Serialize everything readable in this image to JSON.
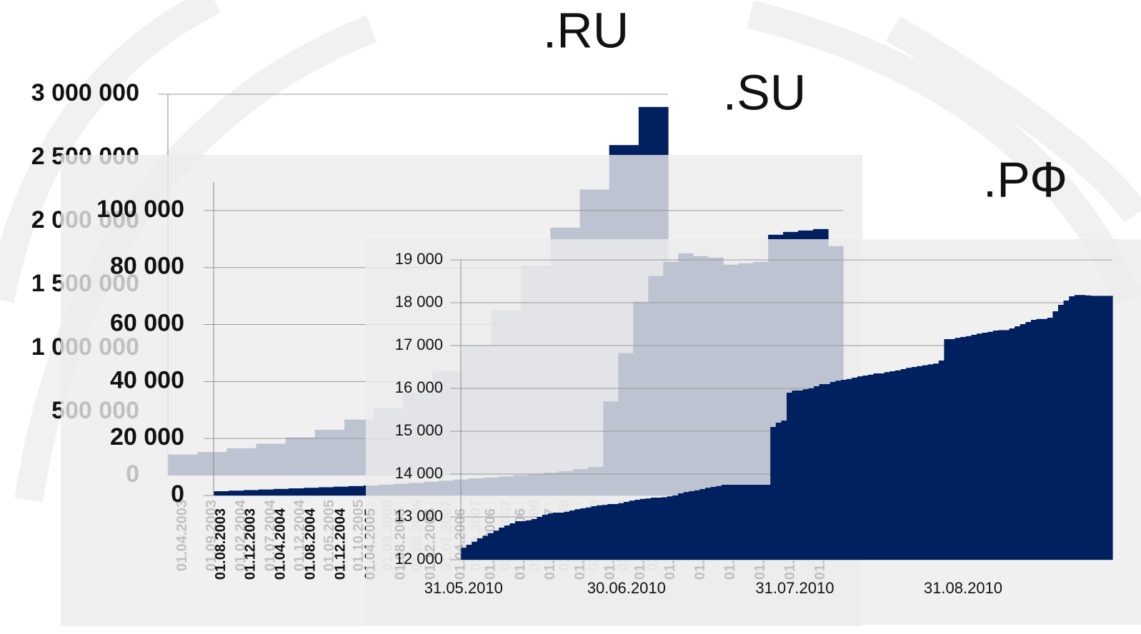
{
  "chart_data": [
    {
      "type": "bar",
      "title": ".RU",
      "categories": [
        "01.04.2003",
        "01.09.2003",
        "01.02.2004",
        "01.07.2004",
        "01.12.2004",
        "01.05.2005",
        "01.10.2005",
        "01.03.2006",
        "01.08.2006",
        "01.01.2007",
        "01.06.2007",
        "01.11.2007",
        "01.04.2008",
        "01.09.2008",
        "01.02.2009",
        "01.07.2009",
        "01.12.2009"
      ],
      "values": [
        165000,
        185000,
        215000,
        250000,
        300000,
        360000,
        440000,
        530000,
        650000,
        820000,
        1020000,
        1300000,
        1650000,
        1950000,
        2250000,
        2600000,
        2900000
      ],
      "color": "#002060",
      "ylim": [
        0,
        3000000
      ],
      "yticks": [
        0,
        {
          "value": 500000,
          "label": "500 000"
        },
        {
          "value": 1000000,
          "label": "1 000 000"
        },
        {
          "value": 1500000,
          "label": "1 500 000"
        },
        {
          "value": 2000000,
          "label": "2 000 000"
        },
        {
          "value": 2500000,
          "label": "2 500 000"
        },
        {
          "value": 3000000,
          "label": "3 000 000"
        }
      ],
      "grid": false
    },
    {
      "type": "bar",
      "title": ".SU",
      "categories": [
        "01.08.2003",
        null,
        "01.12.2003",
        null,
        "01.04.2004",
        null,
        "01.08.2004",
        null,
        "01.12.2004",
        null,
        "01.04.2005",
        null,
        "01.08.2005",
        null,
        "01.12.2005",
        null,
        "01.04.2006",
        null,
        "01.08.2006",
        null,
        "01.12.2006",
        null,
        "01.04.2007",
        null,
        "01.08.2007",
        null,
        "01.12.2007",
        null,
        "01.04.2008",
        null,
        "01.08.2008",
        null,
        "01.12.2008",
        null,
        "01.04.2009",
        null,
        "01.08.2009",
        null,
        "01.12.2009",
        null,
        "01.04.2010",
        null
      ],
      "values": [
        1500,
        1700,
        1900,
        2100,
        2300,
        2500,
        2700,
        2900,
        3100,
        3300,
        3500,
        3800,
        4100,
        4400,
        4800,
        5200,
        5600,
        6000,
        6300,
        6700,
        7100,
        7500,
        8000,
        8500,
        9200,
        10000,
        33000,
        50000,
        68000,
        77000,
        82000,
        85000,
        84000,
        83500,
        81000,
        81500,
        82000,
        91500,
        92500,
        93000,
        93500,
        87500
      ],
      "color": "#002060",
      "ylim": [
        0,
        110000
      ],
      "yticks": [
        0,
        {
          "value": 20000,
          "label": "20 000"
        },
        {
          "value": 40000,
          "label": "40 000"
        },
        {
          "value": 60000,
          "label": "60 000"
        },
        {
          "value": 80000,
          "label": "80 000"
        },
        {
          "value": 100000,
          "label": "100 000"
        }
      ],
      "grid": true
    },
    {
      "type": "bar",
      "title": ".РФ",
      "categories": [
        "31.05.2010",
        null,
        null,
        null,
        null,
        null,
        null,
        null,
        null,
        null,
        null,
        null,
        null,
        null,
        null,
        null,
        null,
        null,
        null,
        null,
        null,
        null,
        null,
        null,
        null,
        null,
        null,
        null,
        null,
        null,
        "30.06.2010",
        null,
        null,
        null,
        null,
        null,
        null,
        null,
        null,
        null,
        null,
        null,
        null,
        null,
        null,
        null,
        null,
        null,
        null,
        null,
        null,
        null,
        null,
        null,
        null,
        null,
        null,
        null,
        null,
        null,
        null,
        "31.07.2010",
        null,
        null,
        null,
        null,
        null,
        null,
        null,
        null,
        null,
        null,
        null,
        null,
        null,
        null,
        null,
        null,
        null,
        null,
        null,
        null,
        null,
        null,
        null,
        null,
        null,
        null,
        null,
        null,
        null,
        null,
        "31.08.2010",
        null,
        null,
        null,
        null,
        null,
        null,
        null,
        null,
        null,
        null,
        null,
        null,
        null,
        null,
        null,
        null,
        null,
        null,
        null,
        null,
        null,
        null,
        null,
        null,
        null,
        null,
        null
      ],
      "values": [
        12280,
        12350,
        12420,
        12500,
        12560,
        12620,
        12680,
        12750,
        12800,
        12850,
        12900,
        12900,
        12920,
        12950,
        13000,
        13050,
        13080,
        13100,
        13100,
        13120,
        13150,
        13180,
        13200,
        13220,
        13250,
        13270,
        13280,
        13300,
        13300,
        13320,
        13350,
        13380,
        13400,
        13420,
        13430,
        13450,
        13450,
        13460,
        13480,
        13500,
        13550,
        13580,
        13600,
        13620,
        13650,
        13680,
        13700,
        13720,
        13750,
        13750,
        13750,
        13750,
        13750,
        13750,
        13750,
        13750,
        13750,
        15100,
        15200,
        15250,
        15900,
        15950,
        15950,
        15980,
        16000,
        16050,
        16100,
        16100,
        16150,
        16180,
        16200,
        16220,
        16250,
        16280,
        16300,
        16320,
        16350,
        16350,
        16380,
        16400,
        16420,
        16450,
        16480,
        16500,
        16520,
        16540,
        16560,
        16580,
        16650,
        17150,
        17150,
        17180,
        17200,
        17220,
        17250,
        17280,
        17300,
        17320,
        17350,
        17360,
        17360,
        17400,
        17450,
        17500,
        17550,
        17600,
        17620,
        17620,
        17650,
        17800,
        17950,
        18050,
        18150,
        18180,
        18180,
        18170,
        18160,
        18160,
        18160,
        18160
      ],
      "color": "#002060",
      "ylim": [
        12000,
        19000
      ],
      "yticks": [
        {
          "value": 12000,
          "label": "12 000"
        },
        {
          "value": 13000,
          "label": "13 000"
        },
        {
          "value": 14000,
          "label": "14 000"
        },
        {
          "value": 15000,
          "label": "15 000"
        },
        {
          "value": 16000,
          "label": "16 000"
        },
        {
          "value": 17000,
          "label": "17 000"
        },
        {
          "value": 18000,
          "label": "18 000"
        },
        {
          "value": 19000,
          "label": "19 000"
        }
      ],
      "grid": true
    }
  ]
}
